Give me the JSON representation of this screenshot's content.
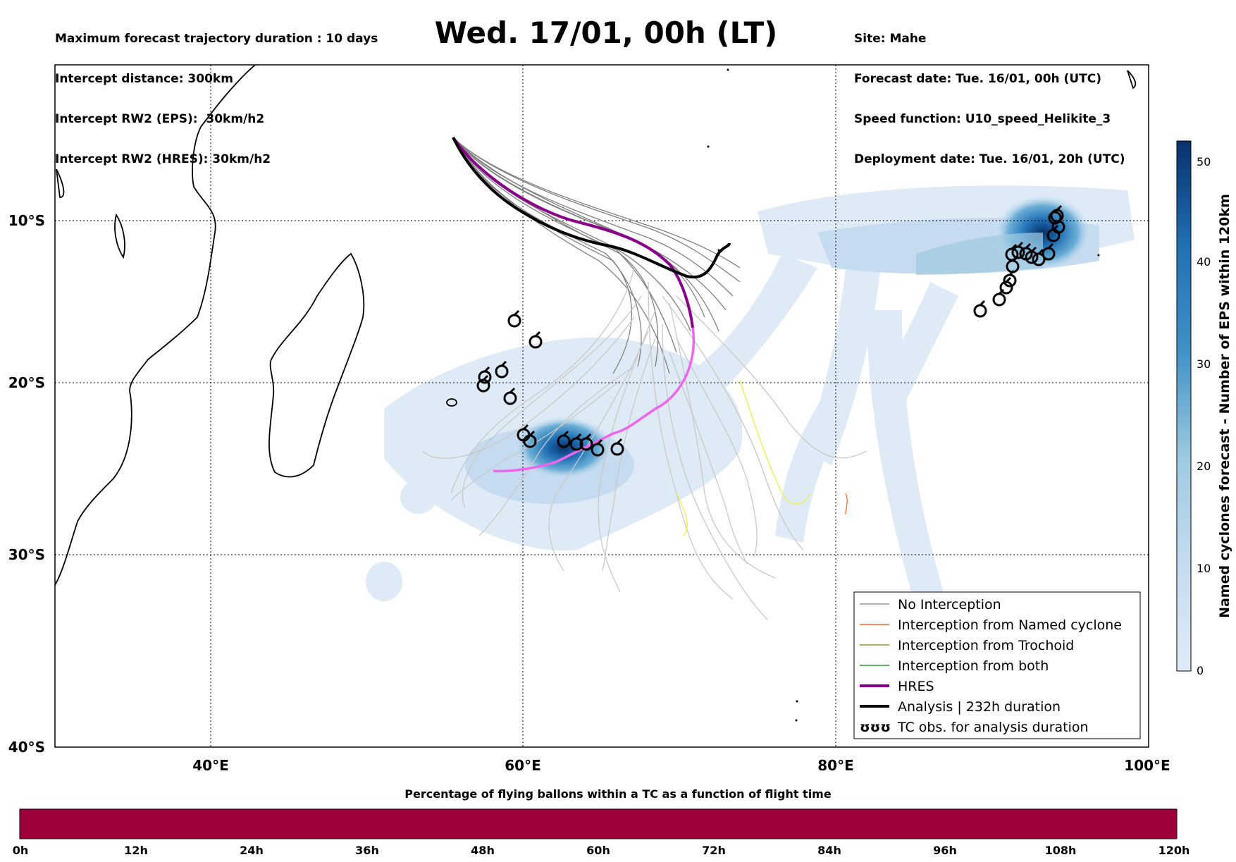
{
  "header": {
    "left": [
      "Maximum forecast trajectory duration : 10 days",
      "Intercept distance: 300km",
      "Intercept RW2 (EPS):  30km/h2",
      "Intercept RW2 (HRES): 30km/h2"
    ],
    "title": "Wed. 17/01, 00h (LT)",
    "right": [
      "Site: Mahe",
      "Forecast date: Tue. 16/01, 00h (UTC)",
      "Speed function: U10_speed_Helikite_3",
      "Deployment date: Tue. 16/01, 20h (UTC)"
    ]
  },
  "map": {
    "lon_range": [
      30,
      100
    ],
    "lat_range": [
      -40,
      0
    ],
    "lat_labels": [
      "10°S",
      "20°S",
      "30°S",
      "40°S"
    ],
    "lon_labels": [
      "40°E",
      "60°E",
      "80°E",
      "100°E"
    ],
    "legend": [
      {
        "label": "No Interception",
        "color": "#808080"
      },
      {
        "label": "Interception from Named cyclone",
        "color": "#ff4500"
      },
      {
        "label": "Interception from Trochoid",
        "color": "#808000"
      },
      {
        "label": "Interception from both",
        "color": "#008000"
      },
      {
        "label": "HRES",
        "color": "#8b008b"
      },
      {
        "label": "Analysis | 232h duration",
        "color": "#000000"
      },
      {
        "label": "TC obs. for analysis duration",
        "color": "#000000",
        "icon": "cyclone-symbol-icon"
      }
    ],
    "legend_icon_text": "ʊʊʊ"
  },
  "colorbar": {
    "label": "Named cyclones forecast - Number of EPS within 120km",
    "ticks": [
      "0",
      "10",
      "20",
      "30",
      "40",
      "50"
    ],
    "range": [
      0,
      52
    ],
    "colors": [
      "#deebf7",
      "#9ecae1",
      "#4292c6",
      "#2171b5",
      "#08306b"
    ]
  },
  "flight_time_bar": {
    "title": "Percentage of flying ballons within a TC as a function of flight time",
    "ticks": [
      "0h",
      "12h",
      "24h",
      "36h",
      "48h",
      "60h",
      "72h",
      "84h",
      "96h",
      "108h",
      "120h"
    ],
    "color": "#a0003c"
  }
}
